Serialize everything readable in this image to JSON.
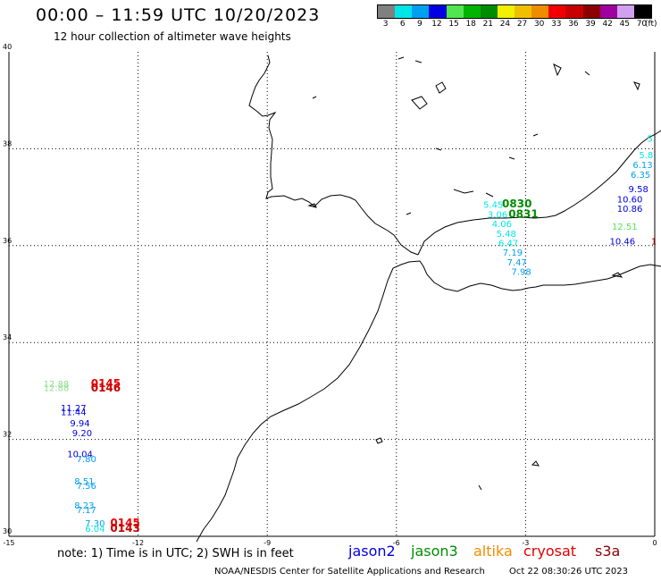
{
  "header": {
    "title": "00:00 – 11:59 UTC 10/20/2023",
    "subtitle": "12 hour collection of altimeter wave heights"
  },
  "legend": {
    "unit": "(ft)",
    "bins": [
      {
        "label": "3",
        "color": "#808080"
      },
      {
        "label": "6",
        "color": "#00e6e6"
      },
      {
        "label": "9",
        "color": "#00a0f0"
      },
      {
        "label": "12",
        "color": "#0000e0"
      },
      {
        "label": "15",
        "color": "#50e650"
      },
      {
        "label": "18",
        "color": "#00b400"
      },
      {
        "label": "21",
        "color": "#008c00"
      },
      {
        "label": "24",
        "color": "#f0f000"
      },
      {
        "label": "27",
        "color": "#f0c000"
      },
      {
        "label": "30",
        "color": "#f08c00"
      },
      {
        "label": "33",
        "color": "#f00000"
      },
      {
        "label": "36",
        "color": "#c80000"
      },
      {
        "label": "39",
        "color": "#8c0000"
      },
      {
        "label": "42",
        "color": "#a000a0"
      },
      {
        "label": "45",
        "color": "#d2a0f0"
      },
      {
        "label": "70",
        "color": "#000000"
      }
    ]
  },
  "axes": {
    "lon_ticks": [
      "-15",
      "-12",
      "-9",
      "-6",
      "-3",
      "0"
    ],
    "lat_ticks": [
      "40",
      "38",
      "36",
      "34",
      "32",
      "30"
    ],
    "lon_range": [
      -15,
      0
    ],
    "lat_range": [
      30,
      40
    ]
  },
  "observations": [
    {
      "text": "5.45",
      "lon": -3.75,
      "lat": 36.78,
      "color": "#00e6e6"
    },
    {
      "text": "0830",
      "lon": -3.2,
      "lat": 36.79,
      "color": "#008c00"
    },
    {
      "text": "3.06",
      "lon": -3.65,
      "lat": 36.58,
      "color": "#00e6e6"
    },
    {
      "text": "0831",
      "lon": -3.05,
      "lat": 36.58,
      "color": "#008c00"
    },
    {
      "text": "4.06",
      "lon": -3.55,
      "lat": 36.38,
      "color": "#00e6e6"
    },
    {
      "text": "5.48",
      "lon": -3.45,
      "lat": 36.18,
      "color": "#00e6e6"
    },
    {
      "text": "6.47",
      "lon": -3.4,
      "lat": 35.99,
      "color": "#00e6e6"
    },
    {
      "text": "7.19",
      "lon": -3.3,
      "lat": 35.79,
      "color": "#00a0f0"
    },
    {
      "text": "7.47",
      "lon": -3.2,
      "lat": 35.59,
      "color": "#00a0f0"
    },
    {
      "text": "7.98",
      "lon": -3.1,
      "lat": 35.4,
      "color": "#00a0f0"
    },
    {
      "text": "5.",
      "lon": -0.08,
      "lat": 38.15,
      "color": "#00e6e6"
    },
    {
      "text": "5.8",
      "lon": -0.2,
      "lat": 37.8,
      "color": "#00e6e6"
    },
    {
      "text": "6.13",
      "lon": -0.28,
      "lat": 37.6,
      "color": "#00a0f0"
    },
    {
      "text": "6.35",
      "lon": -0.33,
      "lat": 37.4,
      "color": "#00a0f0"
    },
    {
      "text": "9.58",
      "lon": -0.38,
      "lat": 37.1,
      "color": "#0000e0"
    },
    {
      "text": "10.60",
      "lon": -0.58,
      "lat": 36.89,
      "color": "#0000e0"
    },
    {
      "text": "10.86",
      "lon": -0.58,
      "lat": 36.7,
      "color": "#0000e0"
    },
    {
      "text": "12.51",
      "lon": -0.7,
      "lat": 36.33,
      "color": "#50e650"
    },
    {
      "text": "10.46",
      "lon": -0.75,
      "lat": 36.02,
      "color": "#0000e0"
    },
    {
      "text": "1",
      "lon": -0.02,
      "lat": 36.02,
      "color": "#c80000"
    },
    {
      "text": "12.88",
      "lon": -13.9,
      "lat": 33.08,
      "color": "#90e090"
    },
    {
      "text": "12.88",
      "lon": -13.9,
      "lat": 33.0,
      "color": "#90e090"
    },
    {
      "text": "0145",
      "lon": -12.75,
      "lat": 33.08,
      "color": "#f00000"
    },
    {
      "text": "0146",
      "lon": -12.75,
      "lat": 32.99,
      "color": "#c80000"
    },
    {
      "text": "11.27",
      "lon": -13.5,
      "lat": 32.58,
      "color": "#0000e0"
    },
    {
      "text": "11.44",
      "lon": -13.5,
      "lat": 32.5,
      "color": "#0000e0"
    },
    {
      "text": "9.94",
      "lon": -13.35,
      "lat": 32.27,
      "color": "#0000e0"
    },
    {
      "text": "9.20",
      "lon": -13.3,
      "lat": 32.07,
      "color": "#0000e0"
    },
    {
      "text": "10.04",
      "lon": -13.35,
      "lat": 31.63,
      "color": "#0000e0"
    },
    {
      "text": "7.80",
      "lon": -13.2,
      "lat": 31.53,
      "color": "#00a0f0"
    },
    {
      "text": "8.51",
      "lon": -13.25,
      "lat": 31.07,
      "color": "#00a0f0"
    },
    {
      "text": "7.56",
      "lon": -13.2,
      "lat": 30.98,
      "color": "#00a0f0"
    },
    {
      "text": "8.23",
      "lon": -13.25,
      "lat": 30.57,
      "color": "#00a0f0"
    },
    {
      "text": "7.17",
      "lon": -13.2,
      "lat": 30.48,
      "color": "#00a0f0"
    },
    {
      "text": "7.30",
      "lon": -13.0,
      "lat": 30.2,
      "color": "#00a0f0"
    },
    {
      "text": "0145",
      "lon": -12.3,
      "lat": 30.2,
      "color": "#f00000"
    },
    {
      "text": "6.04",
      "lon": -13.0,
      "lat": 30.09,
      "color": "#00e6e6"
    },
    {
      "text": "0143",
      "lon": -12.3,
      "lat": 30.09,
      "color": "#c80000"
    }
  ],
  "note": "note: 1) Time is in UTC; 2) SWH is in feet",
  "satellites": [
    {
      "name": "jason2",
      "color": "#0000e0"
    },
    {
      "name": "jason3",
      "color": "#008c00"
    },
    {
      "name": "altika",
      "color": "#f08c00"
    },
    {
      "name": "cryosat",
      "color": "#e00000"
    },
    {
      "name": "s3a",
      "color": "#8c0000"
    }
  ],
  "footer": {
    "credit": "NOAA/NESDIS Center for Satellite Applications and Research",
    "timestamp": "Oct 22 08:30:26 UTC 2023"
  }
}
